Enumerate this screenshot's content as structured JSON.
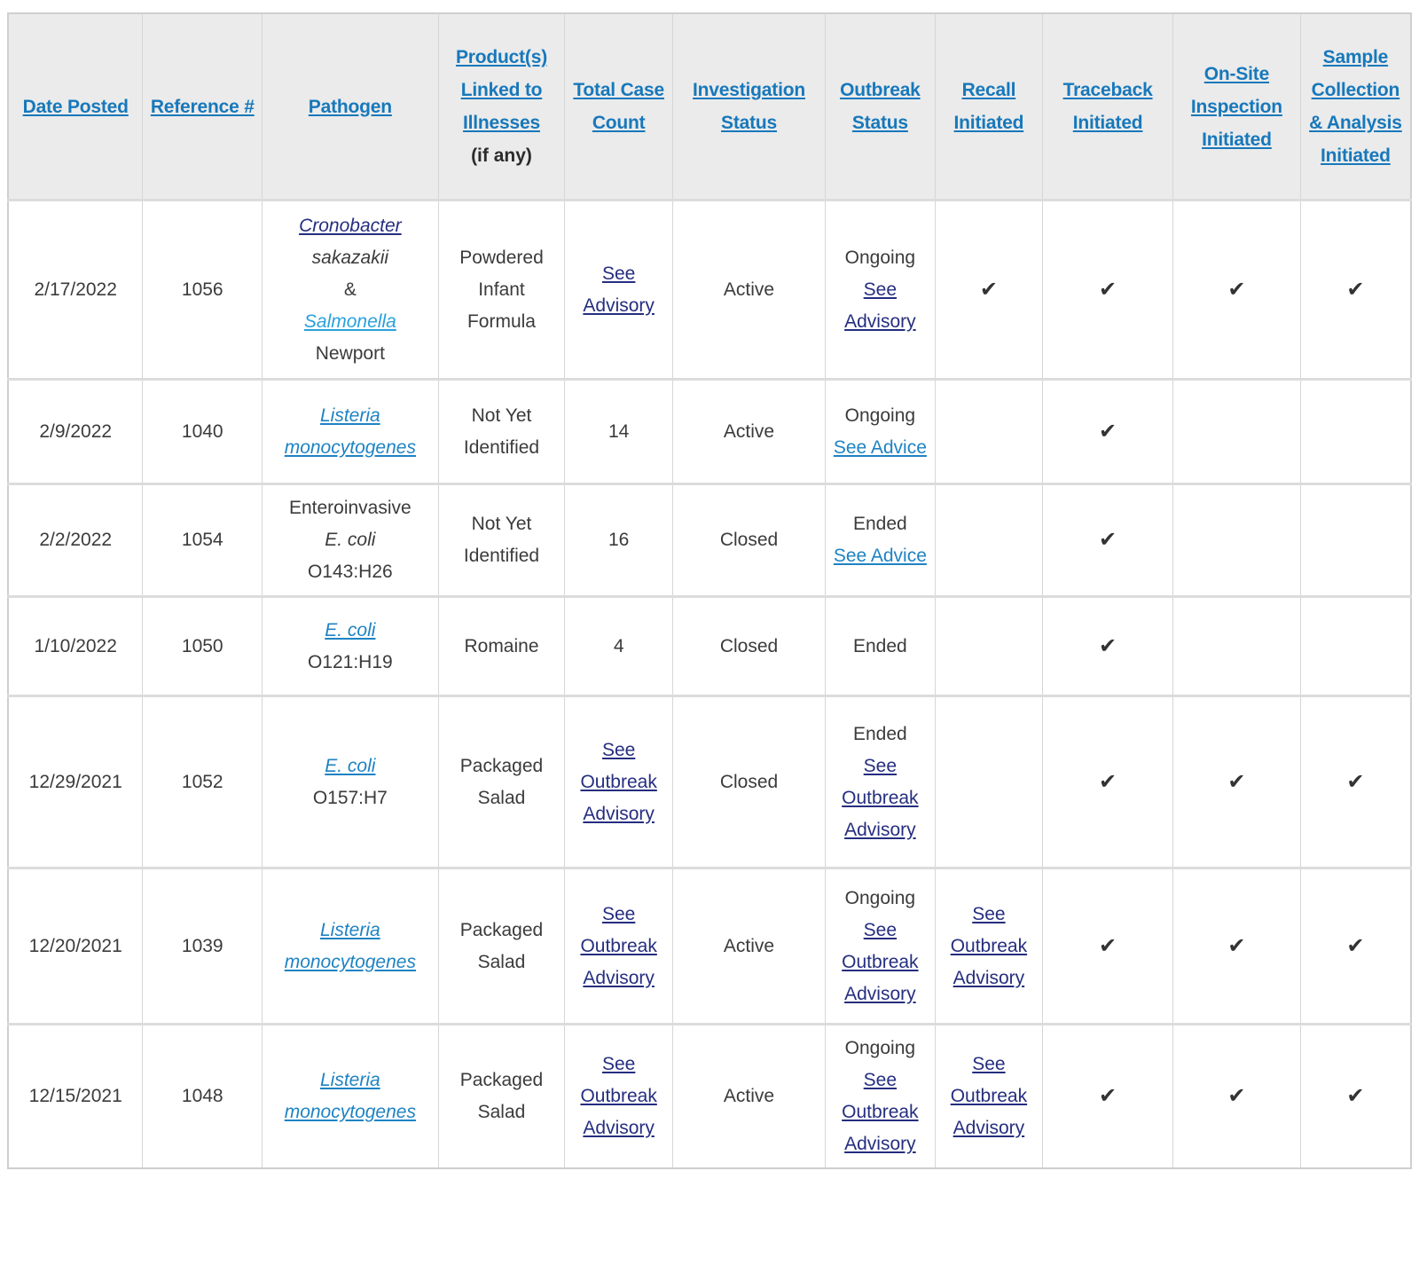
{
  "theme": {
    "header_bg": "#EBEBEB",
    "border_color": "#D6D6D6",
    "header_link_color": "#1778BB",
    "link_color": "#1E83C3",
    "link_light_color": "#2AA1DC",
    "visited_link_color": "#252E7F",
    "text_color": "#3B3B3B",
    "check_color": "#333333",
    "check_icon": "✔"
  },
  "table": {
    "columns": [
      {
        "label": "Date Posted"
      },
      {
        "label": "Reference #"
      },
      {
        "label": "Pathogen"
      },
      {
        "label": "Product(s) Linked to Illnesses",
        "sublabel": "(if any)"
      },
      {
        "label": "Total Case Count"
      },
      {
        "label": "Investigation Status"
      },
      {
        "label": "Outbreak Status"
      },
      {
        "label": "Recall Initiated"
      },
      {
        "label": "Traceback Initiated"
      },
      {
        "label": "On-Site Inspection Initiated"
      },
      {
        "label": "Sample Collection & Analysis Initiated"
      }
    ],
    "rows": [
      {
        "date_posted": "2/17/2022",
        "reference": "1056",
        "pathogen": [
          {
            "text": "Cronobacter",
            "style": "visited-italic"
          },
          {
            "text": "sakazakii",
            "style": "italic"
          },
          {
            "text": "&"
          },
          {
            "text": "Salmonella",
            "style": "link-light-italic"
          },
          {
            "text": "Newport"
          }
        ],
        "product": [
          {
            "text": "Powdered Infant Formula"
          }
        ],
        "total_case_count": [
          {
            "text": "See Advisory",
            "style": "visited"
          }
        ],
        "investigation_status": [
          {
            "text": "Active"
          }
        ],
        "outbreak_status": [
          {
            "text": "Ongoing"
          },
          {
            "text": "See Advisory",
            "style": "visited"
          }
        ],
        "recall_initiated": [
          {
            "text": "✔",
            "style": "check"
          }
        ],
        "traceback_initiated": [
          {
            "text": "✔",
            "style": "check"
          }
        ],
        "onsite_inspection_initiated": [
          {
            "text": "✔",
            "style": "check"
          }
        ],
        "sample_collection_initiated": [
          {
            "text": "✔",
            "style": "check"
          }
        ]
      },
      {
        "date_posted": "2/9/2022",
        "reference": "1040",
        "pathogen": [
          {
            "text": "Listeria monocytogenes",
            "style": "link-italic"
          }
        ],
        "product": [
          {
            "text": "Not Yet Identified"
          }
        ],
        "total_case_count": [
          {
            "text": "14"
          }
        ],
        "investigation_status": [
          {
            "text": "Active"
          }
        ],
        "outbreak_status": [
          {
            "text": "Ongoing"
          },
          {
            "text": "See Advice",
            "style": "link"
          }
        ],
        "recall_initiated": [],
        "traceback_initiated": [
          {
            "text": "✔",
            "style": "check"
          }
        ],
        "onsite_inspection_initiated": [],
        "sample_collection_initiated": []
      },
      {
        "date_posted": "2/2/2022",
        "reference": "1054",
        "pathogen": [
          {
            "text": "Enteroinvasive"
          },
          {
            "text": "E. coli",
            "style": "italic"
          },
          {
            "text": "O143:H26"
          }
        ],
        "product": [
          {
            "text": "Not Yet Identified"
          }
        ],
        "total_case_count": [
          {
            "text": "16"
          }
        ],
        "investigation_status": [
          {
            "text": "Closed"
          }
        ],
        "outbreak_status": [
          {
            "text": "Ended"
          },
          {
            "text": "See Advice",
            "style": "link"
          }
        ],
        "recall_initiated": [],
        "traceback_initiated": [
          {
            "text": "✔",
            "style": "check"
          }
        ],
        "onsite_inspection_initiated": [],
        "sample_collection_initiated": []
      },
      {
        "date_posted": "1/10/2022",
        "reference": "1050",
        "pathogen": [
          {
            "text": "E. coli",
            "style": "link-italic"
          },
          {
            "text": "O121:H19"
          }
        ],
        "product": [
          {
            "text": "Romaine"
          }
        ],
        "total_case_count": [
          {
            "text": "4"
          }
        ],
        "investigation_status": [
          {
            "text": "Closed"
          }
        ],
        "outbreak_status": [
          {
            "text": "Ended"
          }
        ],
        "recall_initiated": [],
        "traceback_initiated": [
          {
            "text": "✔",
            "style": "check"
          }
        ],
        "onsite_inspection_initiated": [],
        "sample_collection_initiated": []
      },
      {
        "date_posted": "12/29/2021",
        "reference": "1052",
        "pathogen": [
          {
            "text": "E. coli",
            "style": "link-italic"
          },
          {
            "text": "O157:H7"
          }
        ],
        "product": [
          {
            "text": "Packaged Salad"
          }
        ],
        "total_case_count": [
          {
            "text": "See Outbreak Advisory",
            "style": "visited"
          }
        ],
        "investigation_status": [
          {
            "text": "Closed"
          }
        ],
        "outbreak_status": [
          {
            "text": "Ended"
          },
          {
            "text": "See Outbreak Advisory",
            "style": "visited"
          }
        ],
        "recall_initiated": [],
        "traceback_initiated": [
          {
            "text": "✔",
            "style": "check"
          }
        ],
        "onsite_inspection_initiated": [
          {
            "text": "✔",
            "style": "check"
          }
        ],
        "sample_collection_initiated": [
          {
            "text": "✔",
            "style": "check"
          }
        ]
      },
      {
        "date_posted": "12/20/2021",
        "reference": "1039",
        "pathogen": [
          {
            "text": "Listeria monocytogenes",
            "style": "link-italic"
          }
        ],
        "product": [
          {
            "text": "Packaged Salad"
          }
        ],
        "total_case_count": [
          {
            "text": "See Outbreak Advisory",
            "style": "visited"
          }
        ],
        "investigation_status": [
          {
            "text": "Active"
          }
        ],
        "outbreak_status": [
          {
            "text": "Ongoing"
          },
          {
            "text": "See Outbreak Advisory",
            "style": "visited"
          }
        ],
        "recall_initiated": [
          {
            "text": "See Outbreak Advisory",
            "style": "visited"
          }
        ],
        "traceback_initiated": [
          {
            "text": "✔",
            "style": "check"
          }
        ],
        "onsite_inspection_initiated": [
          {
            "text": "✔",
            "style": "check"
          }
        ],
        "sample_collection_initiated": [
          {
            "text": "✔",
            "style": "check"
          }
        ]
      },
      {
        "date_posted": "12/15/2021",
        "reference": "1048",
        "pathogen": [
          {
            "text": "Listeria monocytogenes",
            "style": "link-italic"
          }
        ],
        "product": [
          {
            "text": "Packaged Salad"
          }
        ],
        "total_case_count": [
          {
            "text": "See Outbreak Advisory",
            "style": "visited"
          }
        ],
        "investigation_status": [
          {
            "text": "Active"
          }
        ],
        "outbreak_status": [
          {
            "text": "Ongoing"
          },
          {
            "text": "See Outbreak Advisory",
            "style": "visited"
          }
        ],
        "recall_initiated": [
          {
            "text": "See Outbreak Advisory",
            "style": "visited"
          }
        ],
        "traceback_initiated": [
          {
            "text": "✔",
            "style": "check"
          }
        ],
        "onsite_inspection_initiated": [
          {
            "text": "✔",
            "style": "check"
          }
        ],
        "sample_collection_initiated": [
          {
            "text": "✔",
            "style": "check"
          }
        ]
      }
    ]
  }
}
